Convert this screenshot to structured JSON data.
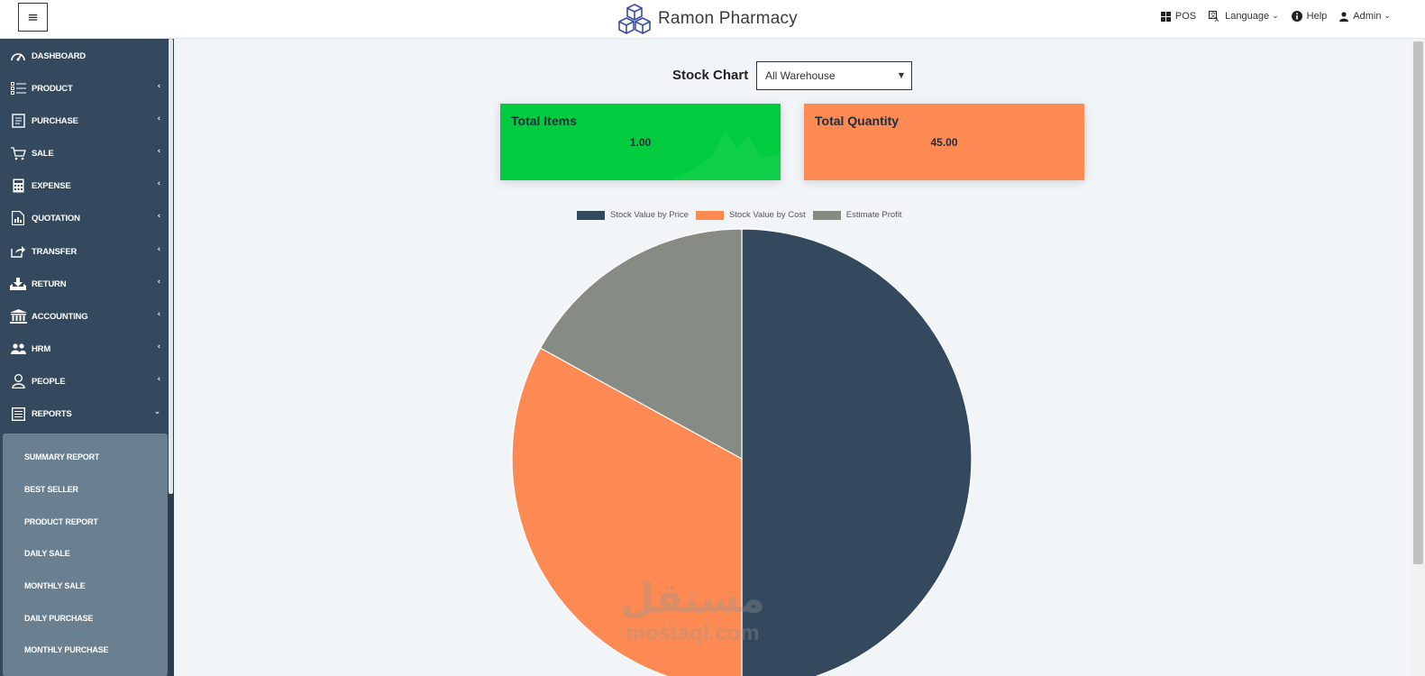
{
  "header": {
    "menu_toggle_icon": "≡",
    "brand": "Ramon Pharmacy",
    "right_items": [
      {
        "icon": "grid-icon",
        "label": "POS",
        "caret": false
      },
      {
        "icon": "translate-icon",
        "label": "Language",
        "caret": true
      },
      {
        "icon": "info-icon",
        "label": "Help",
        "caret": true
      },
      {
        "icon": "user-icon",
        "label": "Admin",
        "caret": true
      }
    ]
  },
  "sidebar": {
    "items": [
      {
        "label": "DASHBOARD",
        "icon": "dashboard-icon",
        "chevron": ""
      },
      {
        "label": "PRODUCT",
        "icon": "list-icon",
        "chevron": "‹"
      },
      {
        "label": "PURCHASE",
        "icon": "receipt-icon",
        "chevron": "‹"
      },
      {
        "label": "SALE",
        "icon": "cart-icon",
        "chevron": "‹"
      },
      {
        "label": "EXPENSE",
        "icon": "calculator-icon",
        "chevron": "‹"
      },
      {
        "label": "QUOTATION",
        "icon": "quote-chart-icon",
        "chevron": "‹"
      },
      {
        "label": "TRANSFER",
        "icon": "share-icon",
        "chevron": "‹"
      },
      {
        "label": "RETURN",
        "icon": "download-tray-icon",
        "chevron": "‹"
      },
      {
        "label": "ACCOUNTING",
        "icon": "bank-icon",
        "chevron": "‹"
      },
      {
        "label": "HRM",
        "icon": "users-icon",
        "chevron": "‹"
      },
      {
        "label": "PEOPLE",
        "icon": "person-icon",
        "chevron": "‹"
      },
      {
        "label": "REPORTS",
        "icon": "report-icon",
        "chevron": "⌄"
      }
    ],
    "report_submenu": [
      "SUMMARY REPORT",
      "BEST SELLER",
      "PRODUCT REPORT",
      "DAILY SALE",
      "MONTHLY SALE",
      "DAILY PURCHASE",
      "MONTHLY PURCHASE"
    ]
  },
  "main": {
    "title": "Stock Chart",
    "warehouse_select": {
      "selected": "All Warehouse"
    },
    "cards": [
      {
        "title": "Total Items",
        "value": "1.00",
        "color": "#01cc3f"
      },
      {
        "title": "Total Quantity",
        "value": "45.00",
        "color": "#fd8a53"
      }
    ]
  },
  "watermark": {
    "arabic": "مستقل",
    "latin": "mostaql.com"
  },
  "colors": {
    "sidebar": "#34495e",
    "submenu": "#6a7f8f",
    "price": "#34495e",
    "cost": "#fd8a53",
    "profit": "#868b83"
  },
  "chart_data": {
    "type": "pie",
    "title": "",
    "legend_position": "top",
    "series": [
      {
        "name": "Stock Value by Price",
        "value": 50,
        "color": "#34495e"
      },
      {
        "name": "Stock Value by Cost",
        "value": 33,
        "color": "#fd8a53"
      },
      {
        "name": "Estimate Profit",
        "value": 17,
        "color": "#868b83"
      }
    ]
  }
}
